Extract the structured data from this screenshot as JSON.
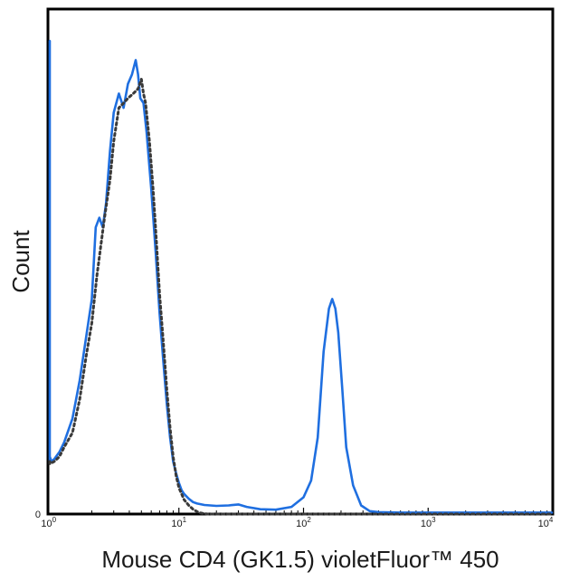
{
  "chart_data": {
    "type": "line",
    "title": "",
    "xlabel": "Mouse CD4 (GK1.5) violetFluor™ 450",
    "ylabel": "Count",
    "xscale": "log",
    "xlim": [
      0.85,
      10000
    ],
    "ylim": [
      0,
      100
    ],
    "grid": false,
    "legend": "none",
    "x_ticks": [
      {
        "value": 0.9,
        "base": "10",
        "exp": "0"
      },
      {
        "value": 10,
        "base": "10",
        "exp": "1"
      },
      {
        "value": 100,
        "base": "10",
        "exp": "2"
      },
      {
        "value": 1000,
        "base": "10",
        "exp": "3"
      },
      {
        "value": 10000,
        "base": "10",
        "exp": "4"
      }
    ],
    "y_ticks": [
      {
        "value": 0,
        "label": "0"
      }
    ],
    "series": [
      {
        "style": "solid",
        "color": "#1f6fe0",
        "x": [
          0.85,
          0.87,
          0.9,
          0.95,
          1.0,
          1.1,
          1.2,
          1.4,
          1.6,
          1.8,
          2.0,
          2.15,
          2.3,
          2.45,
          2.6,
          2.8,
          3.0,
          3.3,
          3.6,
          3.9,
          4.2,
          4.5,
          4.7,
          4.9,
          5.2,
          5.5,
          6.0,
          6.5,
          7.0,
          7.5,
          8.0,
          8.5,
          9.0,
          9.5,
          10.0,
          10.5,
          11.0,
          12.0,
          13.0,
          14.0,
          16.0,
          20.0,
          25.0,
          30.0,
          35.0,
          45.0,
          60.0,
          80.0,
          100.0,
          115.0,
          130.0,
          145.0,
          160.0,
          170.0,
          180.0,
          190.0,
          205.0,
          220.0,
          250.0,
          290.0,
          340.0,
          400.0,
          600.0,
          1000.0,
          3000.0,
          10000.0
        ],
        "y": [
          11,
          99,
          12,
          11,
          11.5,
          13,
          15,
          20,
          28,
          37,
          45,
          60,
          62,
          60,
          65,
          76,
          84,
          88,
          85,
          90,
          92,
          95,
          92,
          87,
          86,
          80,
          68,
          55,
          42,
          32,
          23,
          16,
          11,
          8.5,
          6.5,
          5,
          4.2,
          3.2,
          2.5,
          2.2,
          1.9,
          1.7,
          1.8,
          2.0,
          1.5,
          1.0,
          0.9,
          1.5,
          3.5,
          7,
          16,
          34,
          43,
          45,
          43,
          38,
          26,
          14,
          6,
          1.8,
          0.6,
          0.4,
          0.3,
          0.3,
          0.3,
          0.3
        ]
      },
      {
        "style": "dashed",
        "color": "#3a3a3a",
        "x": [
          0.85,
          0.9,
          1.0,
          1.1,
          1.2,
          1.4,
          1.6,
          1.8,
          2.0,
          2.2,
          2.5,
          2.8,
          3.0,
          3.3,
          3.6,
          3.9,
          4.3,
          4.7,
          5.0,
          5.2,
          5.4,
          5.8,
          6.2,
          6.6,
          7.0,
          7.5,
          8.0,
          8.5,
          9.0,
          9.5,
          10.0,
          11.0,
          12.0,
          13.0,
          14.0,
          15.0,
          17.0,
          20.0,
          30.0,
          100.0,
          1000.0,
          10000.0
        ],
        "y": [
          11,
          10.5,
          11,
          12,
          14,
          17,
          24,
          33,
          40,
          50,
          61,
          70,
          78,
          85,
          86,
          87,
          88,
          89,
          91,
          88,
          86,
          78,
          68,
          57,
          46,
          36,
          26,
          18,
          12,
          8,
          5.5,
          3.0,
          1.8,
          1.0,
          0.5,
          0.2,
          0,
          0,
          0,
          0,
          0,
          0
        ]
      }
    ]
  }
}
